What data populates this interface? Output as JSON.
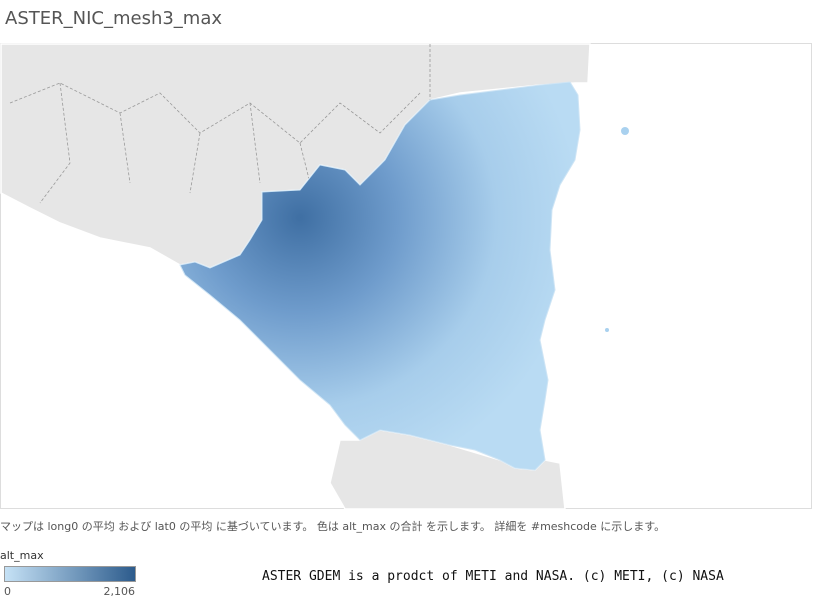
{
  "title": "ASTER_NIC_mesh3_max",
  "caption": "マップは long0 の平均 および lat0 の平均 に基づいています。 色は alt_max の合計 を示します。 詳細を #meshcode に示します。",
  "legend": {
    "title": "alt_max",
    "min": 0,
    "max": {
      "value": 2106,
      "label": "2,106"
    },
    "colors": [
      "#c6e2f6",
      "#2c5b8c"
    ]
  },
  "credit": "ASTER GDEM is a prodct of METI and NASA. (c) METI, (c) NASA"
}
